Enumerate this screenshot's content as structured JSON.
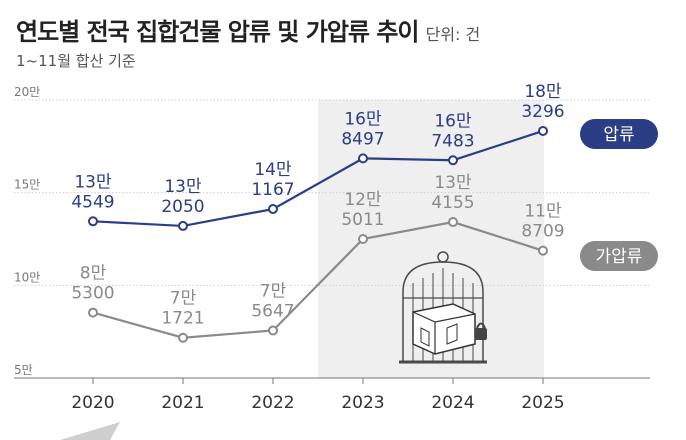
{
  "title": "연도별 전국 집합건물 압류 및 가압류 추이",
  "unit": "단위: 건",
  "subtitle": "1~11월 합산 기준",
  "colors": {
    "seizure": "#2b3d84",
    "provisional": "#8a8a8a",
    "shade": "#efefef",
    "grid": "#cfcfcf",
    "text": "#333333"
  },
  "chart_data": {
    "type": "line",
    "x": [
      "2020",
      "2021",
      "2022",
      "2023",
      "2024",
      "2025"
    ],
    "ylim": [
      50000,
      200000
    ],
    "yticks": [
      {
        "value": 200000,
        "label": "20만"
      },
      {
        "value": 150000,
        "label": "15만"
      },
      {
        "value": 100000,
        "label": "10만"
      },
      {
        "value": 50000,
        "label": "5만"
      }
    ],
    "series": [
      {
        "name": "압류",
        "key": "seizure",
        "values": [
          134549,
          132050,
          141167,
          168497,
          167483,
          183296
        ],
        "labels": [
          [
            "13만",
            "4549"
          ],
          [
            "13만",
            "2050"
          ],
          [
            "14만",
            "1167"
          ],
          [
            "16만",
            "8497"
          ],
          [
            "16만",
            "7483"
          ],
          [
            "18만",
            "3296"
          ]
        ]
      },
      {
        "name": "가압류",
        "key": "provisional",
        "values": [
          85300,
          71721,
          75647,
          125011,
          134155,
          118709
        ],
        "labels": [
          [
            "8만",
            "5300"
          ],
          [
            "7만",
            "1721"
          ],
          [
            "7만",
            "5647"
          ],
          [
            "12만",
            "5011"
          ],
          [
            "13만",
            "4155"
          ],
          [
            "11만",
            "8709"
          ]
        ]
      }
    ],
    "legend_position": "right",
    "grid": true
  }
}
